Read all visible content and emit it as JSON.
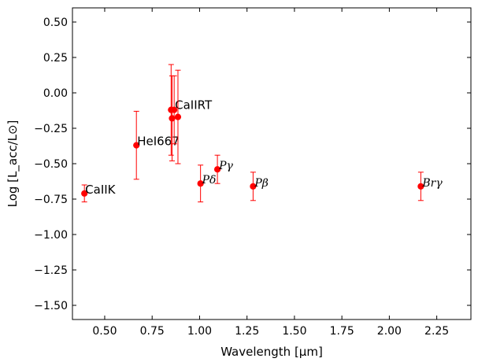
{
  "chart_data": {
    "type": "scatter",
    "title": "",
    "xlabel": "Wavelength [μm]",
    "ylabel": "Log [L_acc/L⊙]",
    "xlim": [
      0.33,
      2.43
    ],
    "ylim": [
      -1.6,
      0.6
    ],
    "xticks": [
      "0.50",
      "0.75",
      "1.00",
      "1.25",
      "1.50",
      "1.75",
      "2.00",
      "2.25"
    ],
    "yticks": [
      "0.50",
      "0.25",
      "0.00",
      "−0.25",
      "−0.50",
      "−0.75",
      "−1.00",
      "−1.25",
      "−1.50"
    ],
    "marker_color": "#ff0000",
    "grid": false,
    "points": [
      {
        "label": "CaIIK",
        "x": 0.393,
        "y": -0.71,
        "yerr": 0.06
      },
      {
        "label": "HeI667",
        "x": 0.667,
        "y": -0.37,
        "yerr": 0.24
      },
      {
        "label": "",
        "x": 0.85,
        "y": -0.12,
        "yerr": 0.32
      },
      {
        "label": "",
        "x": 0.855,
        "y": -0.18,
        "yerr": 0.3
      },
      {
        "label": "CaIIRT",
        "x": 0.866,
        "y": -0.12,
        "yerr": 0.24
      },
      {
        "label": "",
        "x": 0.886,
        "y": -0.17,
        "yerr": 0.33
      },
      {
        "label": "Pδ",
        "x": 1.005,
        "y": -0.64,
        "yerr": 0.13
      },
      {
        "label": "Pγ",
        "x": 1.094,
        "y": -0.54,
        "yerr": 0.1
      },
      {
        "label": "Pβ",
        "x": 1.282,
        "y": -0.66,
        "yerr": 0.1
      },
      {
        "label": "Brγ",
        "x": 2.166,
        "y": -0.66,
        "yerr": 0.1
      }
    ]
  }
}
